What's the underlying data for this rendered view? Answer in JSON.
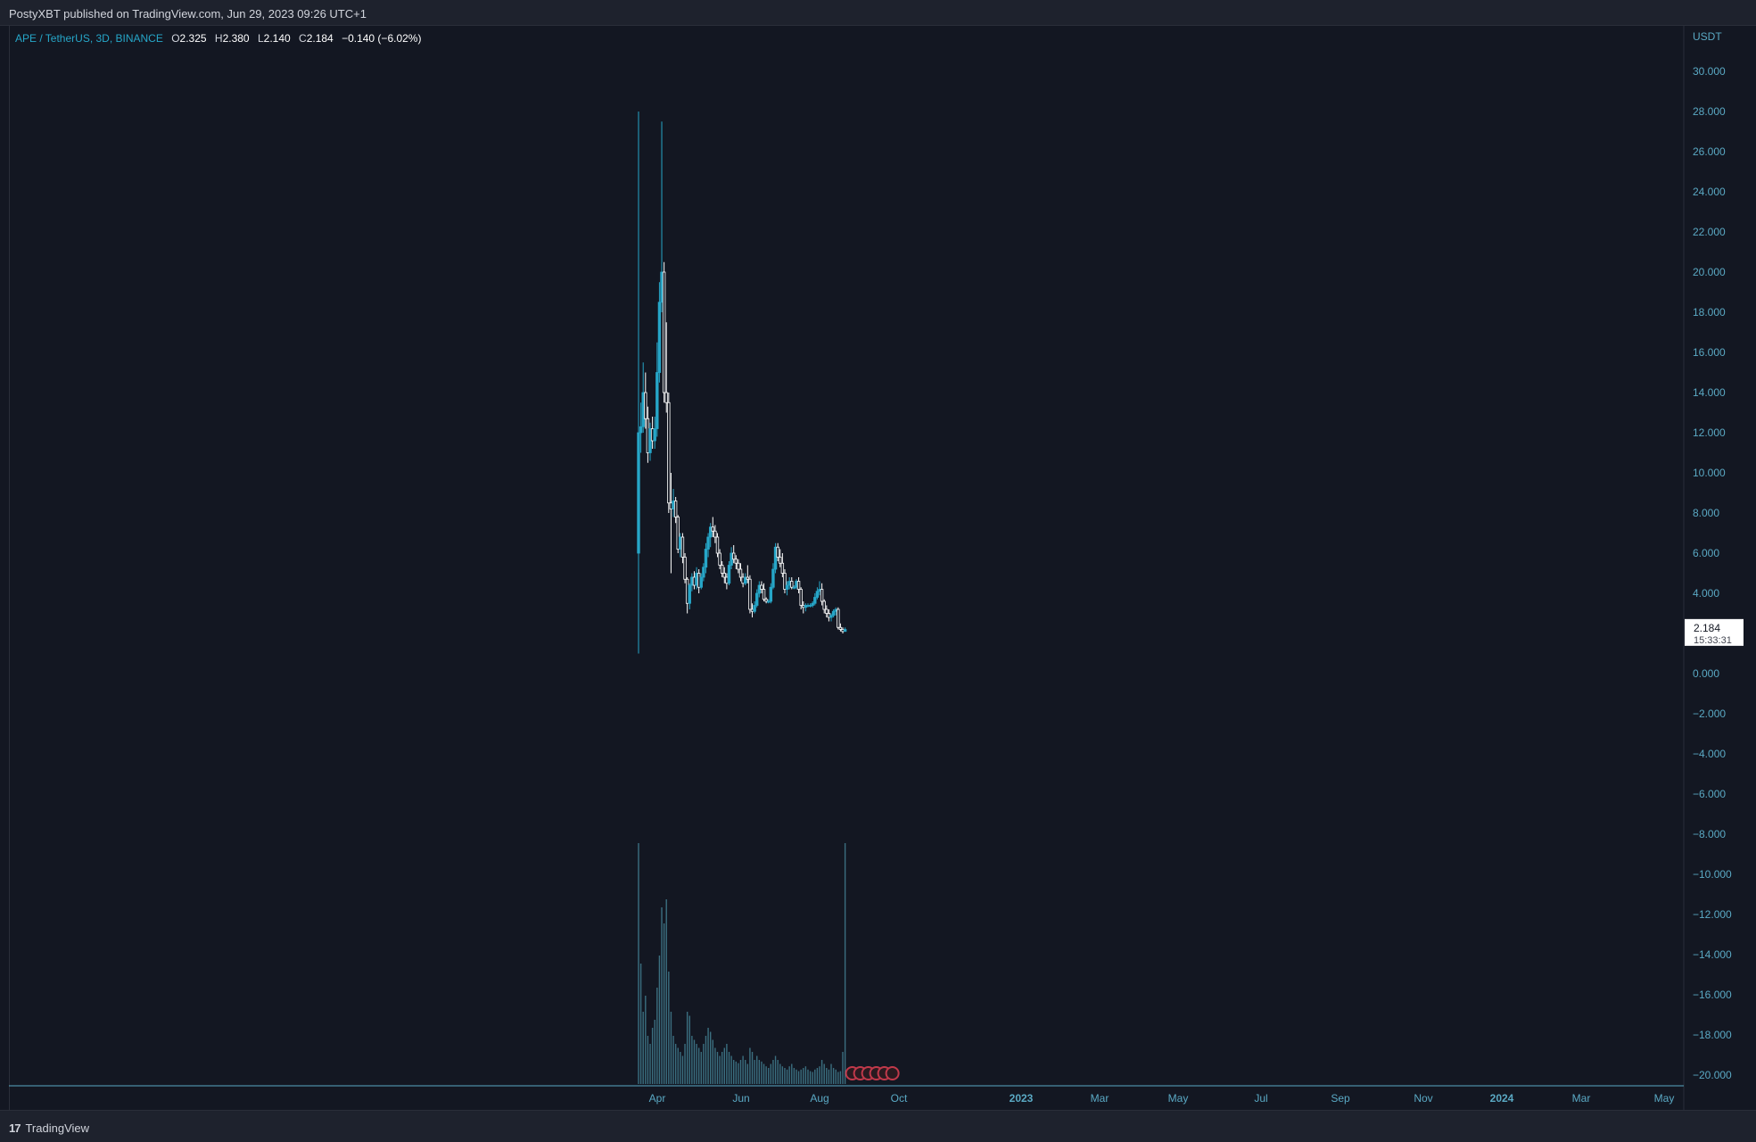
{
  "header": {
    "published_text": "PostyXBT published on TradingView.com, Jun 29, 2023 09:26 UTC+1"
  },
  "legend": {
    "symbol": "APE / TetherUS, 3D, BINANCE",
    "o_label": "O",
    "o_value": "2.325",
    "h_label": "H",
    "h_value": "2.380",
    "l_label": "L",
    "l_value": "2.140",
    "c_label": "C",
    "c_value": "2.184",
    "change": "−0.140 (−6.02%)"
  },
  "price_axis": {
    "unit": "USDT",
    "ticks": [
      "30.000",
      "28.000",
      "26.000",
      "24.000",
      "22.000",
      "20.000",
      "18.000",
      "16.000",
      "14.000",
      "12.000",
      "10.000",
      "8.000",
      "6.000",
      "4.000",
      "0.000",
      "−2.000",
      "−4.000",
      "−6.000",
      "−8.000",
      "−10.000",
      "−12.000",
      "−14.000",
      "−16.000",
      "−18.000",
      "−20.000"
    ]
  },
  "last_price": {
    "value": "2.184",
    "countdown": "15:33:31"
  },
  "time_axis": {
    "labels": [
      {
        "text": "Apr",
        "bold": false
      },
      {
        "text": "Jun",
        "bold": false
      },
      {
        "text": "Aug",
        "bold": false
      },
      {
        "text": "Oct",
        "bold": false
      },
      {
        "text": "2023",
        "bold": true
      },
      {
        "text": "Mar",
        "bold": false
      },
      {
        "text": "May",
        "bold": false
      },
      {
        "text": "Jul",
        "bold": false
      },
      {
        "text": "Sep",
        "bold": false
      },
      {
        "text": "Nov",
        "bold": false
      },
      {
        "text": "2024",
        "bold": true
      },
      {
        "text": "Mar",
        "bold": false
      },
      {
        "text": "May",
        "bold": false
      }
    ]
  },
  "footer": {
    "brand": "TradingView",
    "brand_glyph": "17"
  },
  "colors": {
    "background": "#131722",
    "up_candle": "#26a6c8",
    "down_candle": "#ffffff",
    "axis_text": "#5aa9c4",
    "volume": "#3b6f80",
    "event_marker": "#c0394a"
  },
  "chart_data": {
    "type": "candlestick",
    "symbol": "APE / TetherUS, 3D, BINANCE",
    "ylabel": "USDT",
    "ylim": [
      -21,
      31
    ],
    "xlim": [
      "2022-03-17",
      "2024-05-25"
    ],
    "series": [
      {
        "date": "2022-03-17",
        "open": 6.0,
        "high": 28.0,
        "low": 1.0,
        "close": 12.0
      },
      {
        "date": "2022-03-20",
        "open": 12.0,
        "high": 13.5,
        "low": 11.0,
        "close": 12.3
      },
      {
        "date": "2022-03-23",
        "open": 12.3,
        "high": 15.5,
        "low": 12.0,
        "close": 14.0
      },
      {
        "date": "2022-03-26",
        "open": 14.0,
        "high": 15.0,
        "low": 12.2,
        "close": 12.7
      },
      {
        "date": "2022-03-29",
        "open": 12.7,
        "high": 13.3,
        "low": 10.5,
        "close": 11.0
      },
      {
        "date": "2022-04-01",
        "open": 11.0,
        "high": 12.5,
        "low": 10.6,
        "close": 12.2
      },
      {
        "date": "2022-04-04",
        "open": 12.2,
        "high": 12.8,
        "low": 11.2,
        "close": 11.6
      },
      {
        "date": "2022-04-07",
        "open": 11.6,
        "high": 12.8,
        "low": 11.2,
        "close": 12.2
      },
      {
        "date": "2022-04-10",
        "open": 12.2,
        "high": 16.5,
        "low": 11.8,
        "close": 15.0
      },
      {
        "date": "2022-04-13",
        "open": 15.0,
        "high": 19.5,
        "low": 14.5,
        "close": 18.5
      },
      {
        "date": "2022-04-16",
        "open": 18.5,
        "high": 27.5,
        "low": 18.0,
        "close": 20.0
      },
      {
        "date": "2022-04-19",
        "open": 20.0,
        "high": 20.5,
        "low": 13.5,
        "close": 14.0
      },
      {
        "date": "2022-04-22",
        "open": 14.0,
        "high": 17.5,
        "low": 13.0,
        "close": 13.5
      },
      {
        "date": "2022-04-25",
        "open": 13.5,
        "high": 14.0,
        "low": 8.0,
        "close": 8.5
      },
      {
        "date": "2022-04-28",
        "open": 8.5,
        "high": 10.0,
        "low": 5.0,
        "close": 8.2
      },
      {
        "date": "2022-05-01",
        "open": 8.2,
        "high": 9.2,
        "low": 7.8,
        "close": 8.6
      },
      {
        "date": "2022-05-04",
        "open": 8.6,
        "high": 8.8,
        "low": 7.5,
        "close": 7.8
      },
      {
        "date": "2022-05-07",
        "open": 7.8,
        "high": 7.9,
        "low": 6.0,
        "close": 6.2
      },
      {
        "date": "2022-05-10",
        "open": 6.2,
        "high": 7.0,
        "low": 5.8,
        "close": 6.8
      },
      {
        "date": "2022-05-13",
        "open": 6.8,
        "high": 7.0,
        "low": 5.5,
        "close": 5.8
      },
      {
        "date": "2022-05-16",
        "open": 5.8,
        "high": 6.0,
        "low": 4.5,
        "close": 4.7
      },
      {
        "date": "2022-05-19",
        "open": 4.7,
        "high": 4.8,
        "low": 3.0,
        "close": 3.5
      },
      {
        "date": "2022-05-22",
        "open": 3.5,
        "high": 4.5,
        "low": 3.2,
        "close": 4.4
      },
      {
        "date": "2022-05-25",
        "open": 4.4,
        "high": 5.0,
        "low": 4.1,
        "close": 4.8
      },
      {
        "date": "2022-05-28",
        "open": 4.8,
        "high": 5.1,
        "low": 4.2,
        "close": 4.4
      },
      {
        "date": "2022-05-31",
        "open": 4.4,
        "high": 5.3,
        "low": 4.2,
        "close": 5.0
      },
      {
        "date": "2022-06-03",
        "open": 5.0,
        "high": 5.2,
        "low": 4.0,
        "close": 4.3
      },
      {
        "date": "2022-06-06",
        "open": 4.3,
        "high": 5.0,
        "low": 4.2,
        "close": 4.8
      },
      {
        "date": "2022-06-09",
        "open": 4.8,
        "high": 5.5,
        "low": 4.6,
        "close": 5.3
      },
      {
        "date": "2022-06-12",
        "open": 5.3,
        "high": 6.5,
        "low": 5.0,
        "close": 6.2
      },
      {
        "date": "2022-06-15",
        "open": 6.2,
        "high": 7.0,
        "low": 5.8,
        "close": 6.8
      },
      {
        "date": "2022-06-18",
        "open": 6.8,
        "high": 7.5,
        "low": 6.3,
        "close": 7.3
      },
      {
        "date": "2022-06-21",
        "open": 7.3,
        "high": 7.8,
        "low": 6.8,
        "close": 7.1
      },
      {
        "date": "2022-06-24",
        "open": 7.1,
        "high": 7.4,
        "low": 6.5,
        "close": 6.8
      },
      {
        "date": "2022-06-27",
        "open": 6.8,
        "high": 7.0,
        "low": 5.8,
        "close": 6.0
      },
      {
        "date": "2022-06-30",
        "open": 6.0,
        "high": 6.2,
        "low": 5.2,
        "close": 5.4
      },
      {
        "date": "2022-07-03",
        "open": 5.4,
        "high": 5.6,
        "low": 4.8,
        "close": 5.0
      },
      {
        "date": "2022-07-06",
        "open": 5.0,
        "high": 5.3,
        "low": 4.5,
        "close": 4.8
      },
      {
        "date": "2022-07-09",
        "open": 4.8,
        "high": 5.0,
        "low": 4.2,
        "close": 4.5
      },
      {
        "date": "2022-07-12",
        "open": 4.5,
        "high": 5.6,
        "low": 4.4,
        "close": 5.4
      },
      {
        "date": "2022-07-15",
        "open": 5.4,
        "high": 6.3,
        "low": 5.2,
        "close": 6.0
      },
      {
        "date": "2022-07-18",
        "open": 6.0,
        "high": 6.4,
        "low": 5.5,
        "close": 5.7
      },
      {
        "date": "2022-07-21",
        "open": 5.7,
        "high": 5.9,
        "low": 5.2,
        "close": 5.5
      },
      {
        "date": "2022-07-24",
        "open": 5.5,
        "high": 5.7,
        "low": 5.0,
        "close": 5.2
      },
      {
        "date": "2022-07-27",
        "open": 5.2,
        "high": 5.5,
        "low": 4.6,
        "close": 4.8
      },
      {
        "date": "2022-07-30",
        "open": 4.8,
        "high": 5.0,
        "low": 4.3,
        "close": 4.5
      },
      {
        "date": "2022-08-02",
        "open": 4.5,
        "high": 5.0,
        "low": 4.4,
        "close": 4.8
      },
      {
        "date": "2022-08-05",
        "open": 4.8,
        "high": 5.4,
        "low": 4.5,
        "close": 4.7
      },
      {
        "date": "2022-08-08",
        "open": 4.7,
        "high": 4.9,
        "low": 3.0,
        "close": 3.2
      },
      {
        "date": "2022-08-11",
        "open": 3.2,
        "high": 3.5,
        "low": 2.8,
        "close": 3.1
      },
      {
        "date": "2022-08-14",
        "open": 3.1,
        "high": 3.6,
        "low": 3.0,
        "close": 3.4
      },
      {
        "date": "2022-08-17",
        "open": 3.4,
        "high": 4.2,
        "low": 3.3,
        "close": 4.0
      },
      {
        "date": "2022-08-20",
        "open": 4.0,
        "high": 4.6,
        "low": 3.8,
        "close": 4.4
      },
      {
        "date": "2022-08-23",
        "open": 4.4,
        "high": 4.6,
        "low": 4.0,
        "close": 4.2
      },
      {
        "date": "2022-08-26",
        "open": 4.2,
        "high": 4.5,
        "low": 3.6,
        "close": 3.7
      },
      {
        "date": "2022-08-29",
        "open": 3.7,
        "high": 3.8,
        "low": 3.5,
        "close": 3.6
      },
      {
        "date": "2022-09-01",
        "open": 3.6,
        "high": 3.7,
        "low": 3.5,
        "close": 3.6
      },
      {
        "date": "2022-09-04",
        "open": 3.6,
        "high": 4.5,
        "low": 3.5,
        "close": 4.3
      },
      {
        "date": "2022-09-07",
        "open": 4.3,
        "high": 5.5,
        "low": 4.2,
        "close": 5.2
      },
      {
        "date": "2022-09-10",
        "open": 5.2,
        "high": 6.5,
        "low": 5.0,
        "close": 6.3
      },
      {
        "date": "2022-09-13",
        "open": 6.3,
        "high": 6.5,
        "low": 5.6,
        "close": 5.8
      },
      {
        "date": "2022-09-16",
        "open": 5.8,
        "high": 6.2,
        "low": 5.3,
        "close": 5.5
      },
      {
        "date": "2022-09-19",
        "open": 5.5,
        "high": 6.0,
        "low": 4.8,
        "close": 5.0
      },
      {
        "date": "2022-09-22",
        "open": 5.0,
        "high": 5.2,
        "low": 4.0,
        "close": 4.2
      },
      {
        "date": "2022-09-25",
        "open": 4.2,
        "high": 4.6,
        "low": 3.9,
        "close": 4.4
      },
      {
        "date": "2022-09-28",
        "open": 4.4,
        "high": 4.8,
        "low": 4.2,
        "close": 4.6
      },
      {
        "date": "2022-10-01",
        "open": 4.6,
        "high": 4.8,
        "low": 4.2,
        "close": 4.3
      },
      {
        "date": "2022-10-04",
        "open": 4.3,
        "high": 4.4,
        "low": 4.2,
        "close": 4.3
      },
      {
        "date": "2022-10-07",
        "open": 4.3,
        "high": 4.7,
        "low": 4.2,
        "close": 4.6
      },
      {
        "date": "2022-10-10",
        "open": 4.6,
        "high": 4.8,
        "low": 4.0,
        "close": 4.2
      },
      {
        "date": "2022-10-13",
        "open": 4.2,
        "high": 4.3,
        "low": 3.2,
        "close": 3.4
      },
      {
        "date": "2022-10-16",
        "open": 3.4,
        "high": 3.6,
        "low": 3.0,
        "close": 3.3
      },
      {
        "date": "2022-10-19",
        "open": 3.3,
        "high": 3.5,
        "low": 3.1,
        "close": 3.4
      },
      {
        "date": "2022-10-22",
        "open": 3.4,
        "high": 3.5,
        "low": 3.3,
        "close": 3.4
      },
      {
        "date": "2022-10-25",
        "open": 3.4,
        "high": 3.5,
        "low": 3.3,
        "close": 3.4
      },
      {
        "date": "2022-10-28",
        "open": 3.4,
        "high": 3.6,
        "low": 3.3,
        "close": 3.5
      },
      {
        "date": "2022-10-31",
        "open": 3.5,
        "high": 4.0,
        "low": 3.4,
        "close": 3.8
      },
      {
        "date": "2022-11-03",
        "open": 3.8,
        "high": 4.3,
        "low": 3.7,
        "close": 4.1
      },
      {
        "date": "2022-11-06",
        "open": 4.1,
        "high": 4.6,
        "low": 3.9,
        "close": 4.2
      },
      {
        "date": "2022-11-09",
        "open": 4.2,
        "high": 4.5,
        "low": 3.4,
        "close": 3.6
      },
      {
        "date": "2022-11-12",
        "open": 3.6,
        "high": 3.7,
        "low": 3.0,
        "close": 3.2
      },
      {
        "date": "2022-11-15",
        "open": 3.2,
        "high": 3.4,
        "low": 2.8,
        "close": 3.0
      },
      {
        "date": "2022-11-18",
        "open": 3.0,
        "high": 3.2,
        "low": 2.6,
        "close": 2.8
      },
      {
        "date": "2022-11-21",
        "open": 2.8,
        "high": 3.0,
        "low": 2.6,
        "close": 2.9
      },
      {
        "date": "2022-11-24",
        "open": 2.9,
        "high": 3.2,
        "low": 2.8,
        "close": 3.1
      },
      {
        "date": "2022-11-27",
        "open": 3.1,
        "high": 3.3,
        "low": 2.9,
        "close": 3.2
      },
      {
        "date": "2022-11-30",
        "open": 3.2,
        "high": 3.3,
        "low": 2.2,
        "close": 2.3
      },
      {
        "date": "2022-12-03",
        "open": 2.3,
        "high": 2.5,
        "low": 2.1,
        "close": 2.2
      },
      {
        "date": "2022-12-06",
        "open": 2.2,
        "high": 2.3,
        "low": 2.0,
        "close": 2.1
      },
      {
        "date": "2022-12-09",
        "open": 2.1,
        "high": 2.3,
        "low": 2.1,
        "close": 2.2
      }
    ]
  }
}
